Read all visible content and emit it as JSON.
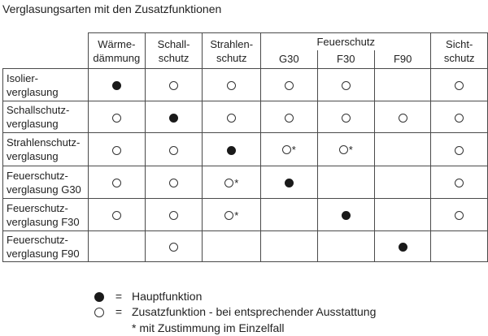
{
  "title": "Verglasungsarten mit den Zusatzfunktionen",
  "header": {
    "waerme": [
      "Wärme-",
      "dämmung"
    ],
    "schall": [
      "Schall-",
      "schutz"
    ],
    "strahlen": [
      "Strahlen-",
      "schutz"
    ],
    "feuer": "Feuerschutz",
    "g30": "G30",
    "f30": "F30",
    "f90": "F90",
    "sicht": [
      "Sicht-",
      "schutz"
    ]
  },
  "rows": [
    {
      "label": [
        "Isolier-",
        "verglasung"
      ],
      "cells": [
        "filled",
        "empty",
        "empty",
        "empty",
        "empty",
        "",
        "empty"
      ]
    },
    {
      "label": [
        "Schallschutz-",
        "verglasung"
      ],
      "cells": [
        "empty",
        "filled",
        "empty",
        "empty",
        "empty",
        "empty",
        "empty"
      ]
    },
    {
      "label": [
        "Strahlenschutz-",
        "verglasung"
      ],
      "cells": [
        "empty",
        "empty",
        "filled",
        "empty*",
        "empty*",
        "",
        "empty"
      ]
    },
    {
      "label": [
        "Feuerschutz-",
        "verglasung G30"
      ],
      "cells": [
        "empty",
        "empty",
        "empty*",
        "filled",
        "",
        "",
        "empty"
      ]
    },
    {
      "label": [
        "Feuerschutz-",
        "verglasung F30"
      ],
      "cells": [
        "empty",
        "empty",
        "empty*",
        "",
        "filled",
        "",
        "empty"
      ]
    },
    {
      "label": [
        "Feuerschutz-",
        "verglasung F90"
      ],
      "cells": [
        "",
        "empty",
        "",
        "",
        "",
        "filled",
        ""
      ]
    }
  ],
  "legend": {
    "eq": "=",
    "main": "Hauptfunktion",
    "additional": "Zusatzfunktion - bei entsprechender Ausstattung",
    "star": "* mit Zustimmung im Einzelfall"
  }
}
